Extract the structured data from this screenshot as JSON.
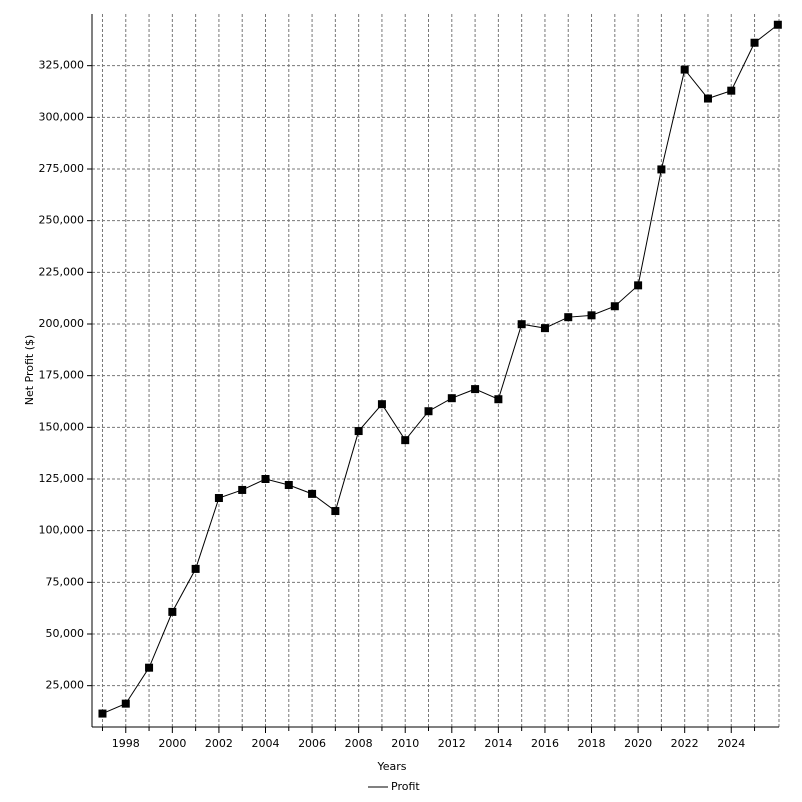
{
  "chart_data": {
    "type": "line",
    "x_label": "Years",
    "y_label": "Net Profit ($)",
    "x": [
      1997,
      1998,
      1999,
      2000,
      2001,
      2002,
      2003,
      2004,
      2005,
      2006,
      2007,
      2008,
      2009,
      2010,
      2011,
      2012,
      2013,
      2014,
      2015,
      2016,
      2017,
      2018,
      2019,
      2020,
      2021,
      2022,
      2023,
      2024,
      2025,
      2026
    ],
    "series": [
      {
        "name": "Profit",
        "color": "#000000",
        "values": [
          11500,
          16300,
          33700,
          60700,
          81500,
          115800,
          119700,
          125000,
          122100,
          117800,
          109500,
          148200,
          161200,
          143800,
          157800,
          164100,
          168500,
          163600,
          199900,
          198000,
          203300,
          204200,
          208600,
          218700,
          274800,
          323100,
          309100,
          312900,
          336100,
          344800
        ]
      }
    ],
    "xlim": [
      1996.55,
      2026.05
    ],
    "xticks": [
      1998,
      2000,
      2002,
      2004,
      2006,
      2008,
      2010,
      2012,
      2014,
      2016,
      2018,
      2020,
      2022,
      2024
    ],
    "x_minor_ticks": [
      1997,
      1999,
      2001,
      2003,
      2005,
      2007,
      2009,
      2011,
      2013,
      2015,
      2017,
      2019,
      2021,
      2023,
      2025
    ],
    "ylim": [
      5000,
      350000
    ],
    "yticks": [
      {
        "value": 25000,
        "label": "25,000"
      },
      {
        "value": 50000,
        "label": "50,000"
      },
      {
        "value": 75000,
        "label": "75,000"
      },
      {
        "value": 100000,
        "label": "100,000"
      },
      {
        "value": 125000,
        "label": "125,000"
      },
      {
        "value": 150000,
        "label": "150,000"
      },
      {
        "value": 175000,
        "label": "175,000"
      },
      {
        "value": 200000,
        "label": "200,000"
      },
      {
        "value": 225000,
        "label": "225,000"
      },
      {
        "value": 250000,
        "label": "250,000"
      },
      {
        "value": 275000,
        "label": "275,000"
      },
      {
        "value": 300000,
        "label": "300,000"
      },
      {
        "value": 325000,
        "label": "325,000"
      }
    ],
    "grid": true,
    "legend": "bottom",
    "marker": "square"
  }
}
